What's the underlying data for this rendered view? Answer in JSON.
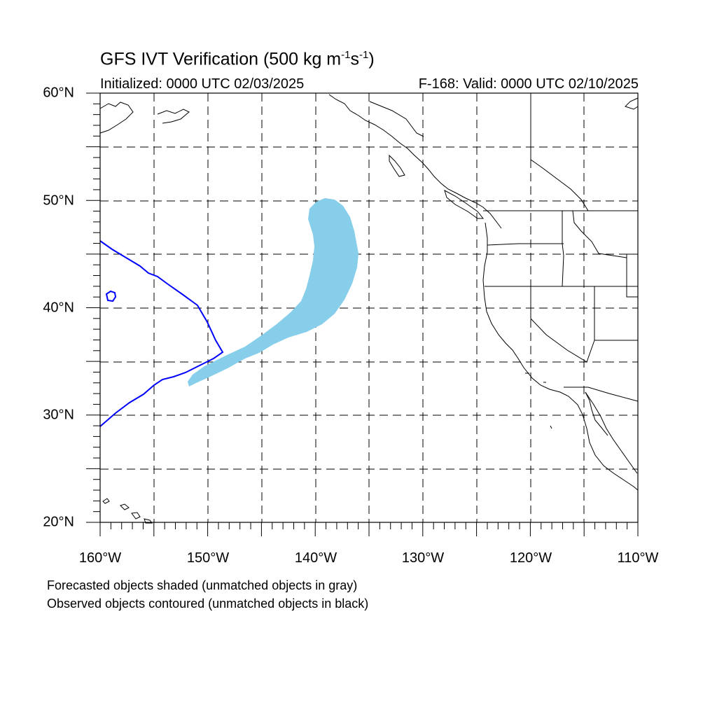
{
  "title": {
    "prefix": "GFS IVT Verification (500 kg m",
    "exp1": "-1",
    "mid": "s",
    "exp2": "-1",
    "suffix": ")"
  },
  "initialized": "Initialized: 0000 UTC 02/03/2025",
  "valid": "F-168: Valid: 0000 UTC 02/10/2025",
  "lat_labels": [
    "60°N",
    "50°N",
    "40°N",
    "30°N",
    "20°N"
  ],
  "lon_labels": [
    "160°W",
    "150°W",
    "140°W",
    "130°W",
    "120°W",
    "110°W"
  ],
  "notes": [
    "Forecasted objects shaded (unmatched objects in gray)",
    "Observed objects contoured (unmatched objects in black)"
  ],
  "colors": {
    "forecast_fill": "#87ceeb",
    "observed_contour": "#0000ff",
    "coastline": "#000000",
    "grid": "#000000"
  },
  "map": {
    "lon_range": [
      -160,
      -110
    ],
    "lat_range": [
      20,
      60
    ],
    "grid_spacing_deg": 5,
    "grid_style": "dashed"
  }
}
